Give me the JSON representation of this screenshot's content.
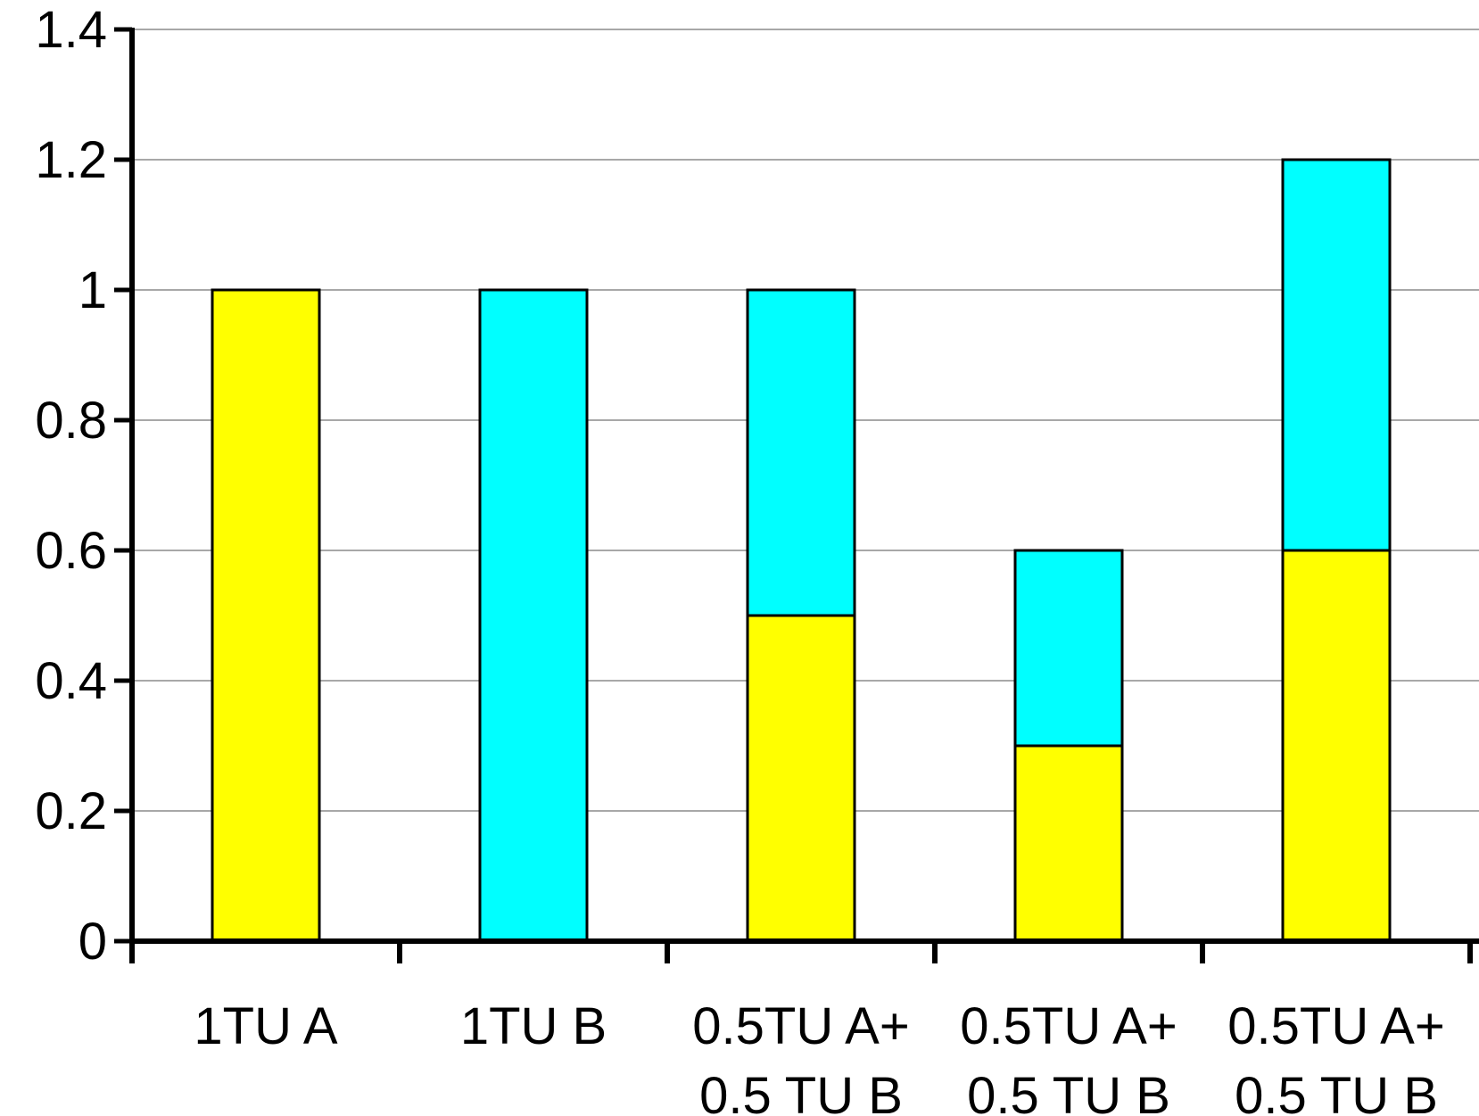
{
  "chart_data": {
    "type": "bar",
    "stacked": true,
    "categories": [
      [
        "1TU A"
      ],
      [
        "1TU B"
      ],
      [
        "0.5TU A+",
        "0.5 TU B"
      ],
      [
        "0.5TU A+",
        "0.5 TU B"
      ],
      [
        "0.5TU A+",
        "0.5 TU B"
      ]
    ],
    "series": [
      {
        "color": "#ffff00",
        "values": [
          1.0,
          0.0,
          0.5,
          0.3,
          0.6
        ]
      },
      {
        "color": "#00ffff",
        "values": [
          0.0,
          1.0,
          0.5,
          0.3,
          0.6
        ]
      }
    ],
    "ylim": [
      0,
      1.4
    ],
    "yticks": [
      "0",
      "0.2",
      "0.4",
      "0.6",
      "0.8",
      "1",
      "1.2",
      "1.4"
    ],
    "grid": true,
    "legend": "none",
    "title": "",
    "xlabel": "",
    "ylabel": ""
  }
}
